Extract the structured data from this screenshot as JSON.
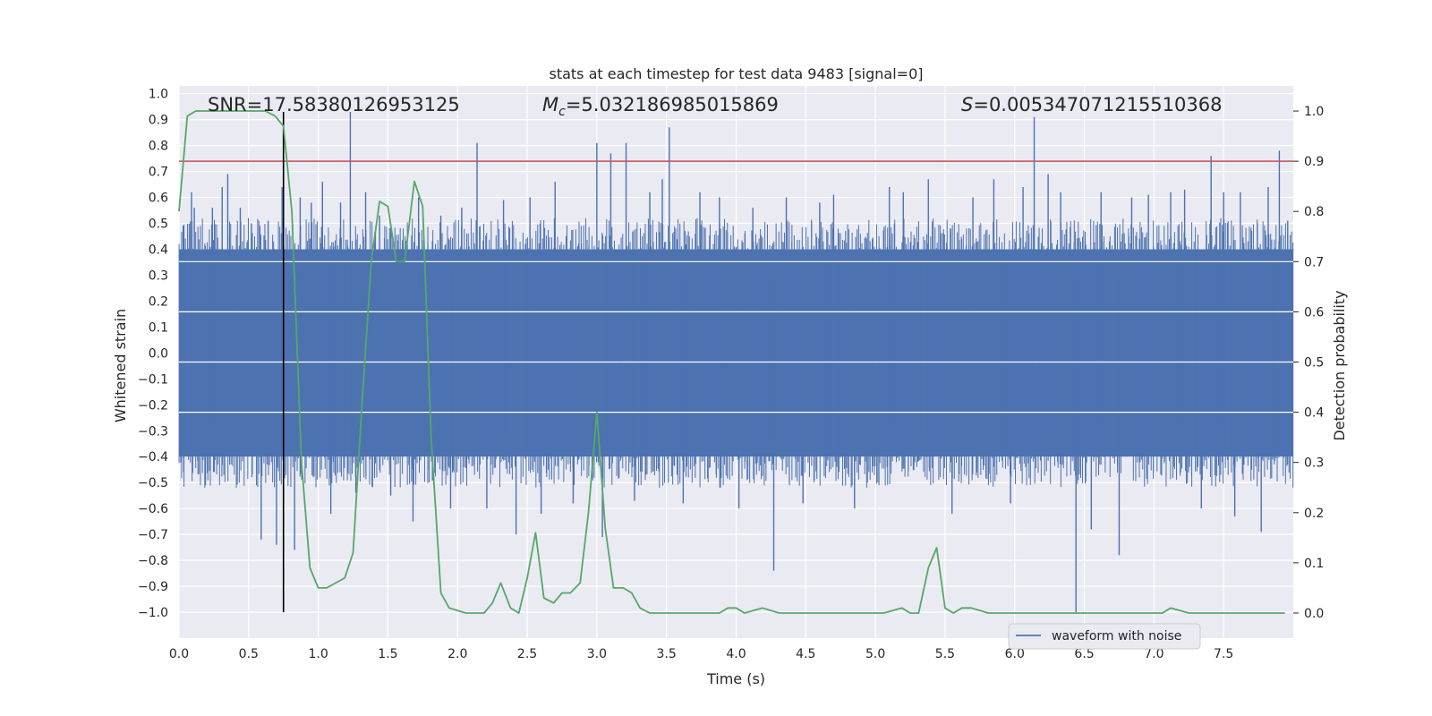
{
  "chart_data": {
    "type": "line",
    "title": "stats at each timestep for test data 9483 [signal=0]",
    "xlabel": "Time (s)",
    "ylabel_left": "Whitened strain",
    "ylabel_right": "Detection probability",
    "xlim": [
      0.0,
      8.0
    ],
    "ylim_left": [
      -1.1,
      1.03
    ],
    "ylim_right": [
      -0.05,
      1.05
    ],
    "x_ticks": [
      0.0,
      0.5,
      1.0,
      1.5,
      2.0,
      2.5,
      3.0,
      3.5,
      4.0,
      4.5,
      5.0,
      5.5,
      6.0,
      6.5,
      7.0,
      7.5
    ],
    "x_tick_labels": [
      "0.0",
      "0.5",
      "1.0",
      "1.5",
      "2.0",
      "2.5",
      "3.0",
      "3.5",
      "4.0",
      "4.5",
      "5.0",
      "5.5",
      "6.0",
      "6.5",
      "7.0",
      "7.5"
    ],
    "y_left_ticks": [
      1.0,
      0.9,
      0.8,
      0.7,
      0.6,
      0.5,
      0.4,
      0.3,
      0.2,
      0.1,
      0.0,
      -0.1,
      -0.2,
      -0.3,
      -0.4,
      -0.5,
      -0.6,
      -0.7,
      -0.8,
      -0.9,
      -1.0
    ],
    "y_left_tick_labels": [
      "1.0",
      "0.9",
      "0.8",
      "0.7",
      "0.6",
      "0.5",
      "0.4",
      "0.3",
      "0.2",
      "0.1",
      "0.0",
      "−0.1",
      "−0.2",
      "−0.3",
      "−0.4",
      "−0.5",
      "−0.6",
      "−0.7",
      "−0.8",
      "−0.9",
      "−1.0"
    ],
    "y_right_ticks": [
      1.0,
      0.9,
      0.8,
      0.7,
      0.6,
      0.5,
      0.4,
      0.3,
      0.2,
      0.1,
      0.0
    ],
    "y_right_tick_labels": [
      "1.0",
      "0.9",
      "0.8",
      "0.7",
      "0.6",
      "0.5",
      "0.4",
      "0.3",
      "0.2",
      "0.1",
      "0.0"
    ],
    "annotations": {
      "snr": "SNR=17.58380126953125",
      "mc_symbol": "M",
      "mc_subscript": "c",
      "mc_value": "=5.032186985015869",
      "s_symbol": "S",
      "s_value": "=0.005347071215510368"
    },
    "threshold": {
      "axis": "right",
      "y": 0.9,
      "color": "#c44e52"
    },
    "event_marker": {
      "x": 0.75,
      "y_range_left": [
        -1.0,
        0.93
      ],
      "color": "#000000"
    },
    "strain_series": {
      "name": "waveform with noise",
      "color": "#4c72b0",
      "axis": "left",
      "envelope_upper": 0.4,
      "envelope_lower": -0.4,
      "spikes": [
        {
          "x": 0.03,
          "y": 0.49
        },
        {
          "x": 0.09,
          "y": 0.62
        },
        {
          "x": 0.11,
          "y": 0.56
        },
        {
          "x": 0.19,
          "y": -0.51
        },
        {
          "x": 0.24,
          "y": 0.56
        },
        {
          "x": 0.31,
          "y": 0.64
        },
        {
          "x": 0.35,
          "y": 0.69
        },
        {
          "x": 0.44,
          "y": 0.56
        },
        {
          "x": 0.52,
          "y": 0.5
        },
        {
          "x": 0.59,
          "y": -0.72
        },
        {
          "x": 0.64,
          "y": 0.51
        },
        {
          "x": 0.7,
          "y": -0.74
        },
        {
          "x": 0.74,
          "y": 0.64
        },
        {
          "x": 0.83,
          "y": -0.76
        },
        {
          "x": 0.87,
          "y": 0.6
        },
        {
          "x": 0.95,
          "y": 0.58
        },
        {
          "x": 1.03,
          "y": 0.66
        },
        {
          "x": 1.09,
          "y": -0.62
        },
        {
          "x": 1.16,
          "y": 0.58
        },
        {
          "x": 1.23,
          "y": 0.93
        },
        {
          "x": 1.27,
          "y": -0.54
        },
        {
          "x": 1.34,
          "y": 0.62
        },
        {
          "x": 1.44,
          "y": 0.53
        },
        {
          "x": 1.52,
          "y": -0.55
        },
        {
          "x": 1.68,
          "y": -0.65
        },
        {
          "x": 1.72,
          "y": 0.6
        },
        {
          "x": 1.88,
          "y": 0.53
        },
        {
          "x": 1.95,
          "y": -0.6
        },
        {
          "x": 2.03,
          "y": 0.56
        },
        {
          "x": 2.14,
          "y": 0.81
        },
        {
          "x": 2.21,
          "y": -0.6
        },
        {
          "x": 2.33,
          "y": 0.59
        },
        {
          "x": 2.42,
          "y": -0.7
        },
        {
          "x": 2.52,
          "y": 0.6
        },
        {
          "x": 2.6,
          "y": -0.62
        },
        {
          "x": 2.7,
          "y": 0.66
        },
        {
          "x": 2.83,
          "y": -0.58
        },
        {
          "x": 3.0,
          "y": 0.81
        },
        {
          "x": 3.04,
          "y": -0.71
        },
        {
          "x": 3.1,
          "y": 0.77
        },
        {
          "x": 3.21,
          "y": 0.81
        },
        {
          "x": 3.27,
          "y": -0.57
        },
        {
          "x": 3.38,
          "y": 0.62
        },
        {
          "x": 3.47,
          "y": 0.67
        },
        {
          "x": 3.52,
          "y": 0.87
        },
        {
          "x": 3.62,
          "y": -0.58
        },
        {
          "x": 3.74,
          "y": 0.62
        },
        {
          "x": 3.88,
          "y": 0.6
        },
        {
          "x": 4.02,
          "y": -0.6
        },
        {
          "x": 4.12,
          "y": 0.56
        },
        {
          "x": 4.27,
          "y": -0.84
        },
        {
          "x": 4.36,
          "y": 0.6
        },
        {
          "x": 4.48,
          "y": -0.58
        },
        {
          "x": 4.6,
          "y": 0.58
        },
        {
          "x": 4.7,
          "y": 0.61
        },
        {
          "x": 4.85,
          "y": -0.6
        },
        {
          "x": 5.1,
          "y": 0.64
        },
        {
          "x": 5.2,
          "y": 0.62
        },
        {
          "x": 5.38,
          "y": 0.67
        },
        {
          "x": 5.55,
          "y": -0.62
        },
        {
          "x": 5.7,
          "y": 0.6
        },
        {
          "x": 5.85,
          "y": 0.67
        },
        {
          "x": 5.97,
          "y": -0.58
        },
        {
          "x": 6.06,
          "y": 0.64
        },
        {
          "x": 6.14,
          "y": 0.91
        },
        {
          "x": 6.24,
          "y": 0.69
        },
        {
          "x": 6.33,
          "y": 0.62
        },
        {
          "x": 6.44,
          "y": -1.0
        },
        {
          "x": 6.55,
          "y": -0.68
        },
        {
          "x": 6.62,
          "y": 0.62
        },
        {
          "x": 6.75,
          "y": -0.78
        },
        {
          "x": 6.84,
          "y": 0.6
        },
        {
          "x": 6.96,
          "y": 0.61
        },
        {
          "x": 7.12,
          "y": 0.62
        },
        {
          "x": 7.22,
          "y": 0.63
        },
        {
          "x": 7.34,
          "y": -0.6
        },
        {
          "x": 7.41,
          "y": 0.76
        },
        {
          "x": 7.5,
          "y": 0.62
        },
        {
          "x": 7.58,
          "y": -0.63
        },
        {
          "x": 7.62,
          "y": 0.62
        },
        {
          "x": 7.77,
          "y": -0.69
        },
        {
          "x": 7.82,
          "y": 0.64
        },
        {
          "x": 7.9,
          "y": 0.78
        },
        {
          "x": 7.96,
          "y": 0.51
        }
      ]
    },
    "probability_series": {
      "name": "detection probability",
      "color": "#55a868",
      "axis": "right",
      "x": [
        0.0,
        0.06,
        0.12,
        0.19,
        0.25,
        0.31,
        0.38,
        0.44,
        0.5,
        0.56,
        0.62,
        0.69,
        0.75,
        0.81,
        0.88,
        0.94,
        1.0,
        1.06,
        1.19,
        1.25,
        1.31,
        1.38,
        1.44,
        1.5,
        1.56,
        1.62,
        1.69,
        1.75,
        1.81,
        1.88,
        1.94,
        2.06,
        2.12,
        2.19,
        2.25,
        2.31,
        2.38,
        2.44,
        2.5,
        2.56,
        2.62,
        2.69,
        2.75,
        2.81,
        2.88,
        2.94,
        3.0,
        3.06,
        3.12,
        3.19,
        3.25,
        3.31,
        3.38,
        3.44,
        3.56,
        3.69,
        3.81,
        3.88,
        3.94,
        4.0,
        4.06,
        4.19,
        4.31,
        4.44,
        4.56,
        4.69,
        4.81,
        4.94,
        5.06,
        5.19,
        5.25,
        5.31,
        5.38,
        5.44,
        5.5,
        5.56,
        5.62,
        5.69,
        5.81,
        5.94,
        6.06,
        6.19,
        6.31,
        6.44,
        6.56,
        6.69,
        6.81,
        6.94,
        7.06,
        7.12,
        7.25,
        7.38,
        7.5,
        7.62,
        7.75,
        7.88,
        7.94
      ],
      "y": [
        0.8,
        0.99,
        1.0,
        1.0,
        1.0,
        1.0,
        1.0,
        1.0,
        1.0,
        1.0,
        1.0,
        0.99,
        0.97,
        0.8,
        0.3,
        0.09,
        0.05,
        0.05,
        0.07,
        0.12,
        0.4,
        0.7,
        0.82,
        0.81,
        0.7,
        0.7,
        0.86,
        0.81,
        0.35,
        0.04,
        0.01,
        0.0,
        0.0,
        0.0,
        0.02,
        0.06,
        0.01,
        0.0,
        0.07,
        0.16,
        0.03,
        0.02,
        0.04,
        0.04,
        0.06,
        0.2,
        0.4,
        0.17,
        0.05,
        0.05,
        0.04,
        0.01,
        0.0,
        0.0,
        0.0,
        0.0,
        0.0,
        0.0,
        0.01,
        0.01,
        0.0,
        0.01,
        0.0,
        0.0,
        0.0,
        0.0,
        0.0,
        0.0,
        0.0,
        0.01,
        0.0,
        0.0,
        0.09,
        0.13,
        0.01,
        0.0,
        0.01,
        0.01,
        0.0,
        0.0,
        0.0,
        0.0,
        0.0,
        0.0,
        0.0,
        0.0,
        0.0,
        0.0,
        0.0,
        0.01,
        0.0,
        0.0,
        0.0,
        0.0,
        0.0,
        0.0,
        0.0
      ]
    },
    "legend": {
      "entries": [
        "waveform with noise"
      ],
      "location": "lower-right"
    },
    "grid": true,
    "background_color": "#eaeaf2"
  }
}
